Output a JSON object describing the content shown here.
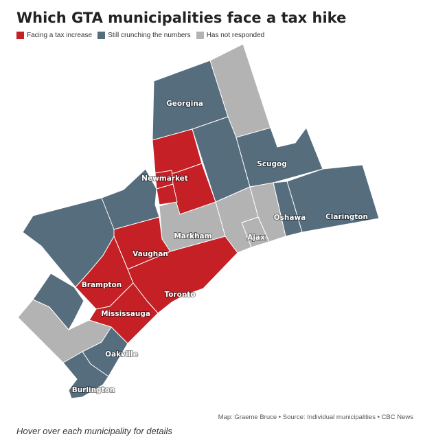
{
  "title": "Which GTA municipalities face a tax hike",
  "legend": [
    {
      "label": "Facing a tax increase",
      "color": "#c42026"
    },
    {
      "label": "Still crunching the numbers",
      "color": "#566d7e"
    },
    {
      "label": "Has not responded",
      "color": "#b3b3b3"
    }
  ],
  "colors": {
    "increase": "#c42026",
    "crunching": "#566d7e",
    "no_response": "#b3b3b3",
    "border": "#ffffff"
  },
  "labels": {
    "georgina": "Georgina",
    "scugog": "Scugog",
    "newmarket": "Newmarket",
    "markham": "Markham",
    "vaughan": "Vaughan",
    "oshawa": "Oshawa",
    "clarington": "Clarington",
    "ajax": "Ajax",
    "brampton": "Brampton",
    "toronto": "Toronto",
    "mississauga": "Mississauga",
    "oakville": "Oakville",
    "burlington": "Burlington"
  },
  "credit": "Map: Graeme Bruce • Source: Individual municipalities • CBC News",
  "hover_note": "Hover over each municipality for details"
}
